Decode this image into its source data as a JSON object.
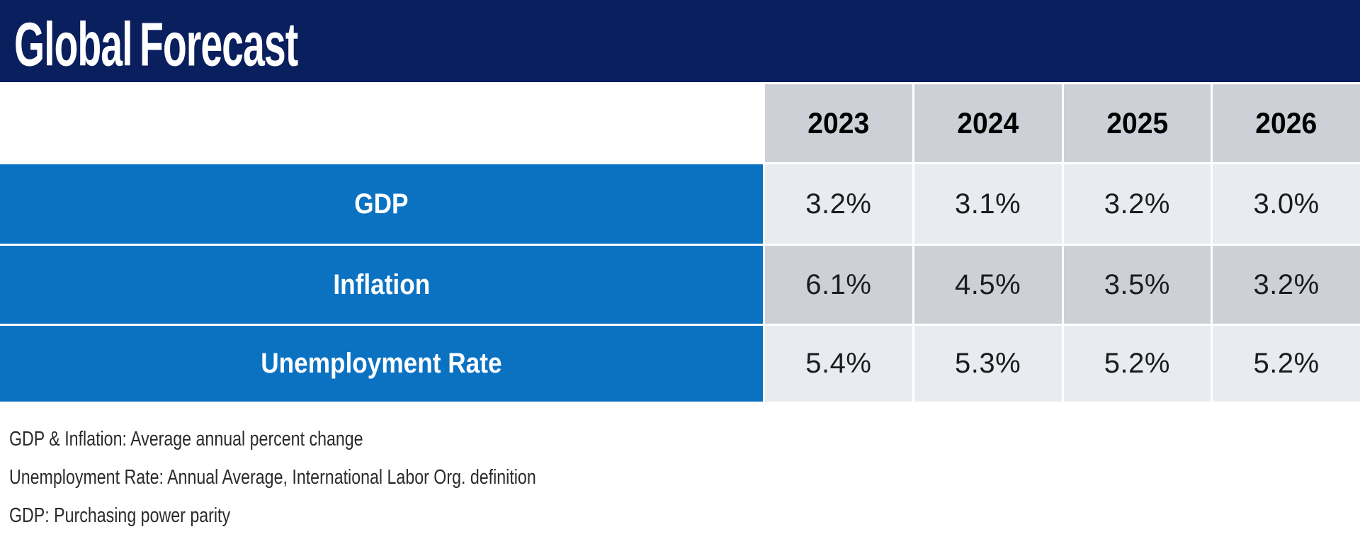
{
  "header": {
    "title": "Global Forecast"
  },
  "chart_data": {
    "type": "table",
    "title": "Global Forecast",
    "columns": [
      "2023",
      "2024",
      "2025",
      "2026"
    ],
    "rows": [
      {
        "label": "GDP",
        "values": [
          "3.2%",
          "3.1%",
          "3.2%",
          "3.0%"
        ]
      },
      {
        "label": "Inflation",
        "values": [
          "6.1%",
          "4.5%",
          "3.5%",
          "3.2%"
        ]
      },
      {
        "label": "Unemployment Rate",
        "values": [
          "5.4%",
          "5.3%",
          "5.2%",
          "5.2%"
        ]
      }
    ],
    "notes": [
      "GDP & Inflation: Average annual percent change",
      "Unemployment Rate: Annual Average, International Labor Org. definition",
      "GDP: Purchasing power parity"
    ]
  },
  "colors": {
    "navy": "#0a1f5e",
    "blue": "#0b72c2",
    "gray_dark": "#cdd1d7",
    "gray_light": "#e8ebef",
    "value_text": "#1c1c1e",
    "footnote_text": "#2b2b2b"
  }
}
